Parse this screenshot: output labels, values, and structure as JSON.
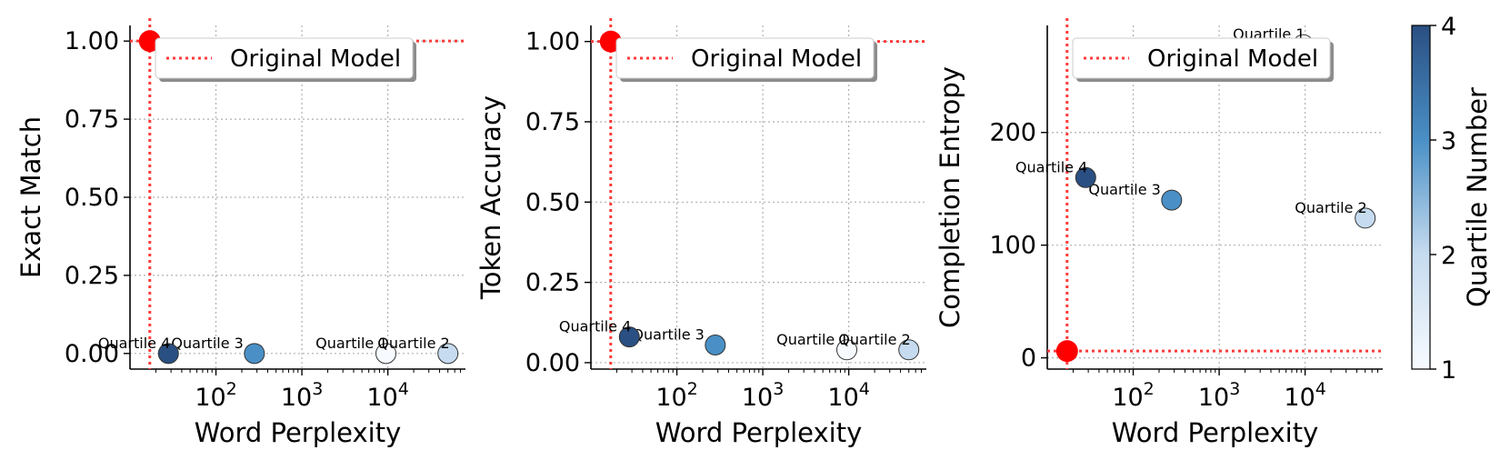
{
  "chart_data": [
    {
      "type": "scatter",
      "xlabel": "Word Perplexity",
      "ylabel": "Exact Match",
      "xscale": "log",
      "xlim": [
        10,
        80000
      ],
      "ylim": [
        -0.05,
        1.05
      ],
      "xticks": [
        100,
        1000,
        10000
      ],
      "xtick_labels": [
        [
          "10",
          "2"
        ],
        [
          "10",
          "3"
        ],
        [
          "10",
          "4"
        ]
      ],
      "yticks": [
        0,
        0.25,
        0.5,
        0.75,
        1.0
      ],
      "ytick_labels": [
        "0.00",
        "0.25",
        "0.50",
        "0.75",
        "1.00"
      ],
      "grid": true,
      "legend": {
        "position": "top-right",
        "entries": [
          "Original Model"
        ]
      },
      "original_model": {
        "x": 17,
        "y": 1.0
      },
      "points": [
        {
          "label": "Quartile 1",
          "x": 9500,
          "y": 0.0,
          "quartile": 1
        },
        {
          "label": "Quartile 2",
          "x": 50000,
          "y": 0.0,
          "quartile": 2
        },
        {
          "label": "Quartile 3",
          "x": 280,
          "y": 0.0,
          "quartile": 3
        },
        {
          "label": "Quartile 4",
          "x": 28,
          "y": 0.0,
          "quartile": 4
        }
      ]
    },
    {
      "type": "scatter",
      "xlabel": "Word Perplexity",
      "ylabel": "Token Accuracy",
      "xscale": "log",
      "xlim": [
        10,
        80000
      ],
      "ylim": [
        -0.02,
        1.05
      ],
      "xticks": [
        100,
        1000,
        10000
      ],
      "xtick_labels": [
        [
          "10",
          "2"
        ],
        [
          "10",
          "3"
        ],
        [
          "10",
          "4"
        ]
      ],
      "yticks": [
        0,
        0.25,
        0.5,
        0.75,
        1.0
      ],
      "ytick_labels": [
        "0.00",
        "0.25",
        "0.50",
        "0.75",
        "1.00"
      ],
      "grid": true,
      "legend": {
        "position": "top-right",
        "entries": [
          "Original Model"
        ]
      },
      "original_model": {
        "x": 17,
        "y": 1.0
      },
      "points": [
        {
          "label": "Quartile 1",
          "x": 9500,
          "y": 0.04,
          "quartile": 1
        },
        {
          "label": "Quartile 2",
          "x": 50000,
          "y": 0.04,
          "quartile": 2
        },
        {
          "label": "Quartile 3",
          "x": 280,
          "y": 0.055,
          "quartile": 3
        },
        {
          "label": "Quartile 4",
          "x": 28,
          "y": 0.08,
          "quartile": 4
        }
      ]
    },
    {
      "type": "scatter",
      "xlabel": "Word Perplexity",
      "ylabel": "Completion Entropy",
      "xscale": "log",
      "xlim": [
        10,
        80000
      ],
      "ylim": [
        -10,
        295
      ],
      "xticks": [
        100,
        1000,
        10000
      ],
      "xtick_labels": [
        [
          "10",
          "2"
        ],
        [
          "10",
          "3"
        ],
        [
          "10",
          "4"
        ]
      ],
      "yticks": [
        0,
        100,
        200
      ],
      "ytick_labels": [
        "0",
        "100",
        "200"
      ],
      "grid": true,
      "legend": {
        "position": "top-right",
        "entries": [
          "Original Model"
        ]
      },
      "original_model": {
        "x": 17,
        "y": 6
      },
      "points": [
        {
          "label": "Quartile 1",
          "x": 9500,
          "y": 278,
          "quartile": 1
        },
        {
          "label": "Quartile 2",
          "x": 50000,
          "y": 124,
          "quartile": 2
        },
        {
          "label": "Quartile 3",
          "x": 280,
          "y": 140,
          "quartile": 3
        },
        {
          "label": "Quartile 4",
          "x": 28,
          "y": 160,
          "quartile": 4
        }
      ]
    }
  ],
  "colorbar": {
    "label": "Quartile Number",
    "range": [
      1,
      4
    ],
    "ticks": [
      1,
      2,
      3,
      4
    ],
    "tick_labels": [
      "1",
      "2",
      "3",
      "4"
    ],
    "colors": [
      "#f7fbff",
      "#c6dbef",
      "#4a90c6",
      "#2a4f82"
    ]
  },
  "colors": {
    "original_model": "#ff0000",
    "reference_line": "#ff3b3b",
    "grid": "#b0b0b0"
  }
}
